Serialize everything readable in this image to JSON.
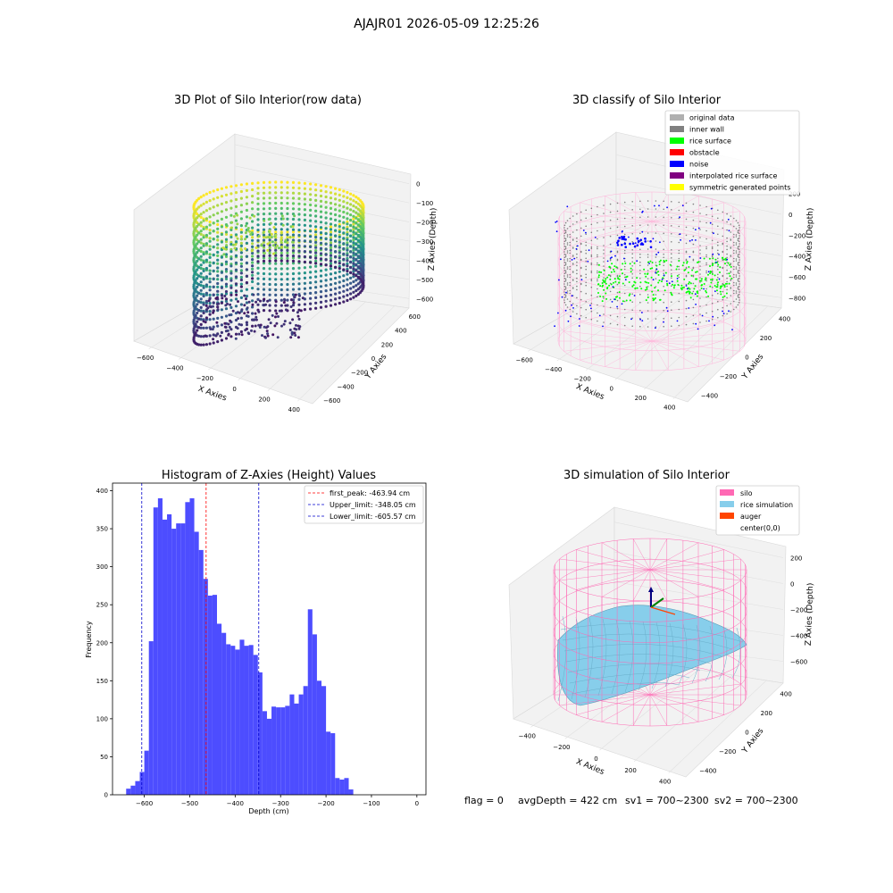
{
  "suptitle": "AJAJR01 2026-05-09 12:25:26",
  "footer": {
    "flag": "flag = 0",
    "avg": "avgDepth = 422 cm",
    "sv1": "sv1 = 700~2300",
    "sv2": "sv2 = 700~2300"
  },
  "colors": {
    "bar": "#4d4dff",
    "peak_line": "#ff0000",
    "limit_line": "#0000cc",
    "pane": "#f2f2f2",
    "silo_wire": "#ff69b4",
    "rice_sim": "#87ceeb",
    "auger": "#ff4500"
  },
  "chart_data": [
    {
      "type": "scatter",
      "subtype": "3d",
      "title": "3D Plot of Silo Interior(row data)",
      "xlabel": "X Axies",
      "ylabel": "Y Axies",
      "zlabel": "Z Axies (Depth)",
      "x_ticks": [
        "−600",
        "−400",
        "−200",
        "0",
        "200",
        "400"
      ],
      "y_ticks": [
        "−600",
        "−400",
        "−200",
        "0",
        "200",
        "400",
        "600"
      ],
      "z_ticks": [
        "0",
        "−100",
        "−200",
        "−300",
        "−400",
        "−500",
        "−600"
      ],
      "colormap": "viridis"
    },
    {
      "type": "scatter",
      "subtype": "3d",
      "title": "3D classify of Silo Interior",
      "xlabel": "X Axies",
      "ylabel": "Y Axies",
      "zlabel": "Z Axies (Depth)",
      "x_ticks": [
        "−600",
        "−400",
        "−200",
        "0",
        "200",
        "400"
      ],
      "y_ticks": [
        "−400",
        "−200",
        "0",
        "200",
        "400"
      ],
      "z_ticks": [
        "200",
        "0",
        "−200",
        "−400",
        "−600",
        "−800"
      ],
      "legend": [
        {
          "label": "original data",
          "color": "#b0b0b0"
        },
        {
          "label": "inner wall",
          "color": "#808080"
        },
        {
          "label": "rice surface",
          "color": "#00ff00"
        },
        {
          "label": "obstacle",
          "color": "#ff0000"
        },
        {
          "label": "noise",
          "color": "#0000ff"
        },
        {
          "label": "interpolated rice surface",
          "color": "#800080"
        },
        {
          "label": "symmetric generated points",
          "color": "#ffff00"
        }
      ],
      "legend_position": "top-right"
    },
    {
      "type": "bar",
      "subtype": "histogram",
      "title": "Histogram of Z-Axies (Height) Values",
      "xlabel": "Depth (cm)",
      "ylabel": "Frequency",
      "xlim": [
        -670,
        20
      ],
      "ylim": [
        0,
        410
      ],
      "x_ticks": [
        -600,
        -500,
        -400,
        -300,
        -200,
        -100,
        0
      ],
      "x_tick_labels": [
        "−600",
        "−500",
        "−400",
        "−300",
        "−200",
        "−100",
        "0"
      ],
      "y_ticks": [
        0,
        50,
        100,
        150,
        200,
        250,
        300,
        350,
        400
      ],
      "bin_start": -640,
      "bin_width": 10,
      "values": [
        8,
        12,
        18,
        30,
        58,
        202,
        378,
        390,
        362,
        369,
        350,
        357,
        357,
        385,
        390,
        346,
        322,
        284,
        262,
        263,
        225,
        213,
        198,
        196,
        191,
        204,
        196,
        197,
        184,
        161,
        110,
        100,
        116,
        115,
        115,
        117,
        132,
        120,
        132,
        143,
        244,
        211,
        150,
        143,
        83,
        81,
        22,
        20,
        22,
        7
      ],
      "vlines": [
        {
          "label": "first_peak: -463.94 cm",
          "x": -463.94,
          "style": "dashed",
          "color": "#ff0000"
        },
        {
          "label": "Upper_limit: -348.05 cm",
          "x": -348.05,
          "style": "dashed",
          "color": "#0000cc"
        },
        {
          "label": "Lower_limit: -605.57 cm",
          "x": -605.57,
          "style": "dashed",
          "color": "#0000cc"
        }
      ],
      "legend_position": "top-right"
    },
    {
      "type": "area",
      "subtype": "3d-surface",
      "title": "3D simulation of Silo Interior",
      "xlabel": "X Axies",
      "ylabel": "Y Axies",
      "zlabel": "Z Axies (Depth)",
      "x_ticks": [
        "−400",
        "−200",
        "0",
        "200",
        "400"
      ],
      "y_ticks": [
        "−400",
        "−200",
        "0",
        "200",
        "400"
      ],
      "z_ticks": [
        "200",
        "0",
        "−200",
        "−400",
        "−600"
      ],
      "legend": [
        {
          "label": "silo",
          "color": "#ff69b4"
        },
        {
          "label": "rice simulation",
          "color": "#87ceeb"
        },
        {
          "label": "auger",
          "color": "#ff4500"
        },
        {
          "label": "center(0,0)",
          "color": ""
        }
      ],
      "legend_position": "top-right"
    }
  ]
}
